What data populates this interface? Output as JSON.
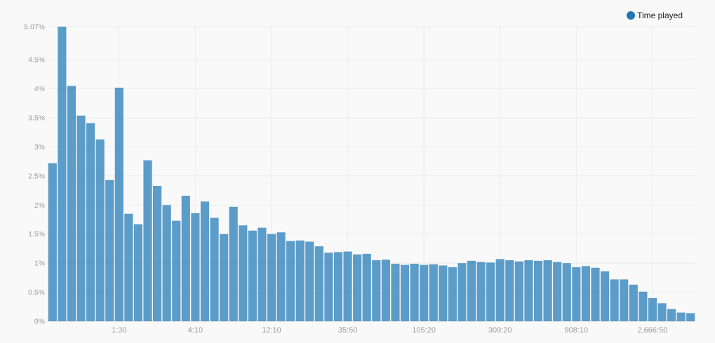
{
  "chart_data": {
    "type": "bar",
    "title": "",
    "xlabel": "",
    "ylabel": "",
    "ylim": [
      0,
      5.07
    ],
    "y_ticks": [
      "0%",
      "0.5%",
      "1%",
      "1.5%",
      "2%",
      "2.5%",
      "3%",
      "3.5%",
      "4%",
      "4.5%",
      "5.07%"
    ],
    "y_tick_values": [
      0,
      0.5,
      1,
      1.5,
      2,
      2.5,
      3,
      3.5,
      4,
      4.5,
      5.07
    ],
    "x_tick_labels": [
      {
        "label": "1:30",
        "bar_index": 7
      },
      {
        "label": "4:10",
        "bar_index": 15
      },
      {
        "label": "12:10",
        "bar_index": 23
      },
      {
        "label": "35:50",
        "bar_index": 31
      },
      {
        "label": "105:20",
        "bar_index": 39
      },
      {
        "label": "309:20",
        "bar_index": 47
      },
      {
        "label": "908:10",
        "bar_index": 55
      },
      {
        "label": "2,666:50",
        "bar_index": 63
      }
    ],
    "legend_position": "top-right",
    "grid": true,
    "series": [
      {
        "name": "Time played",
        "color": "#1f77b4",
        "values": [
          2.72,
          5.07,
          4.05,
          3.54,
          3.41,
          3.13,
          2.43,
          4.02,
          1.85,
          1.67,
          2.77,
          2.33,
          2.0,
          1.73,
          2.16,
          1.86,
          2.06,
          1.78,
          1.5,
          1.97,
          1.65,
          1.56,
          1.61,
          1.5,
          1.53,
          1.38,
          1.39,
          1.37,
          1.29,
          1.18,
          1.19,
          1.2,
          1.15,
          1.16,
          1.05,
          1.06,
          0.99,
          0.97,
          0.99,
          0.97,
          0.98,
          0.96,
          0.93,
          1.0,
          1.04,
          1.02,
          1.01,
          1.07,
          1.05,
          1.03,
          1.05,
          1.04,
          1.05,
          1.02,
          1.0,
          0.93,
          0.95,
          0.92,
          0.86,
          0.72,
          0.72,
          0.63,
          0.51,
          0.4,
          0.31,
          0.21,
          0.15,
          0.14
        ]
      }
    ]
  },
  "legend": {
    "label": "Time played"
  }
}
